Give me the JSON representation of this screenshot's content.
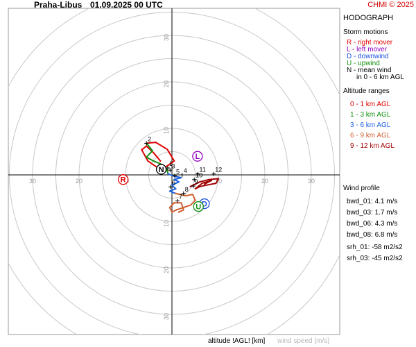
{
  "header": {
    "station": "Praha-Libus",
    "datetime": "01.09.2025 00 UTC",
    "credit": "CHMI © 2025"
  },
  "legend": {
    "title": "HODOGRAPH",
    "storm_heading": "Storm motions",
    "storm_items": [
      {
        "text": "R - right mover",
        "color": "#e00000"
      },
      {
        "text": "L - left mover",
        "color": "#9000c0"
      },
      {
        "text": "D - downwind",
        "color": "#1a50e0"
      },
      {
        "text": "U - upwind",
        "color": "#109010"
      },
      {
        "text": "N - mean wind",
        "color": "#000000"
      },
      {
        "text": "in 0 - 6 km AGL",
        "color": "#000000"
      }
    ],
    "alt_heading": "Altitude ranges",
    "alt_items": [
      {
        "text": "0 - 1 km AGL",
        "color": "#e00000"
      },
      {
        "text": "1 - 3 km AGL",
        "color": "#109010"
      },
      {
        "text": "3 - 6 km AGL",
        "color": "#1a60e0"
      },
      {
        "text": "6 - 9 km AGL",
        "color": "#d06030"
      },
      {
        "text": "9 - 12 km AGL",
        "color": "#a00000"
      }
    ],
    "wind_heading": "Wind profile",
    "wind_items": [
      {
        "text": "bwd_01: 4.1 m/s"
      },
      {
        "text": "bwd_03: 1.7 m/s"
      },
      {
        "text": "bwd_06: 4.3 m/s"
      },
      {
        "text": "bwd_08: 6.8 m/s"
      },
      {
        "text": "srh_01: -58 m2/s2"
      },
      {
        "text": "srh_03: -45 m2/s2"
      }
    ]
  },
  "footer": {
    "altitude_label": "altitude !AGL! [km]",
    "speed_label": "wind speed [m/s]"
  },
  "chart_data": {
    "type": "scatter",
    "title": "HODOGRAPH",
    "units": "m/s",
    "rings": [
      5,
      10,
      15,
      20,
      25,
      30,
      35,
      40
    ],
    "ring_labels": [
      "10",
      "20",
      "30"
    ],
    "axis_range": [
      -30,
      30
    ],
    "grid": true,
    "series": [
      {
        "name": "0 - 1 km AGL",
        "color": "#e00000",
        "points": [
          [
            -2.5,
            3.0
          ],
          [
            -4.0,
            4.8
          ],
          [
            -5.5,
            6.2
          ],
          [
            -6.5,
            5.4
          ],
          [
            -5.2,
            3.0
          ],
          [
            -3.0,
            1.5
          ],
          [
            -1.5,
            1.6
          ],
          [
            0.5,
            3.0
          ],
          [
            -1.0,
            5.5
          ],
          [
            -3.5,
            7.0
          ],
          [
            -5.5,
            6.8
          ]
        ]
      },
      {
        "name": "1 - 3 km AGL",
        "color": "#109010",
        "points": [
          [
            -5.5,
            6.8
          ],
          [
            -4.2,
            5.2
          ],
          [
            -5.5,
            3.8
          ],
          [
            -4.0,
            3.0
          ],
          [
            -2.5,
            2.4
          ],
          [
            -1.2,
            1.4
          ],
          [
            -0.8,
            0.2
          ]
        ]
      },
      {
        "name": "3 - 6 km AGL",
        "color": "#1a60e0",
        "points": [
          [
            -0.8,
            0.2
          ],
          [
            0.5,
            -0.3
          ],
          [
            2.0,
            -0.6
          ],
          [
            0.5,
            -1.0
          ],
          [
            1.5,
            -1.5
          ],
          [
            0.0,
            -2.2
          ],
          [
            0.8,
            -3.0
          ],
          [
            -0.5,
            -3.5
          ],
          [
            0.8,
            -4.0
          ]
        ]
      },
      {
        "name": "6 - 9 km AGL",
        "color": "#d06030",
        "points": [
          [
            0.8,
            -4.0
          ],
          [
            3.0,
            -4.5
          ],
          [
            4.5,
            -4.2
          ],
          [
            5.0,
            -5.5
          ],
          [
            4.0,
            -6.5
          ],
          [
            2.5,
            -7.0
          ],
          [
            1.0,
            -7.5
          ],
          [
            0.0,
            -8.0
          ],
          [
            -0.5,
            -7.0
          ],
          [
            0.5,
            -6.0
          ],
          [
            2.0,
            -6.0
          ],
          [
            2.5,
            -7.5
          ],
          [
            1.5,
            -8.0
          ]
        ]
      },
      {
        "name": "9 - 12 km AGL",
        "color": "#a00000",
        "points": [
          [
            4.0,
            -2.5
          ],
          [
            6.0,
            -1.5
          ],
          [
            8.0,
            -1.0
          ],
          [
            10.0,
            -0.8
          ],
          [
            9.5,
            -1.8
          ],
          [
            7.5,
            -2.2
          ],
          [
            6.0,
            -2.5
          ],
          [
            5.0,
            -3.0
          ],
          [
            6.5,
            -1.8
          ],
          [
            8.5,
            -1.2
          ],
          [
            7.0,
            -2.0
          ]
        ]
      }
    ],
    "height_labels": [
      {
        "label": "1",
        "x": -0.9,
        "y": 1.5
      },
      {
        "label": "2",
        "x": -5.5,
        "y": 6.8
      },
      {
        "label": "3",
        "x": -0.4,
        "y": 1.0
      },
      {
        "label": "4",
        "x": 2.2,
        "y": 0.0
      },
      {
        "label": "5",
        "x": 0.6,
        "y": -0.2
      },
      {
        "label": "6",
        "x": -0.3,
        "y": -2.6
      },
      {
        "label": "7",
        "x": 1.2,
        "y": -5.6
      },
      {
        "label": "8",
        "x": 2.5,
        "y": -4.0
      },
      {
        "label": "9",
        "x": 4.6,
        "y": -2.4
      },
      {
        "label": "10",
        "x": 4.8,
        "y": -1.0
      },
      {
        "label": "11",
        "x": 5.6,
        "y": 0.2
      },
      {
        "label": "12",
        "x": 9.0,
        "y": 0.2
      }
    ],
    "storm_motions": [
      {
        "label": "R",
        "x": -10.5,
        "y": -1.0,
        "color": "#e00000"
      },
      {
        "label": "L",
        "x": 5.5,
        "y": 4.0,
        "color": "#9000c0"
      },
      {
        "label": "D",
        "x": 7.0,
        "y": -6.2,
        "color": "#1a50e0"
      },
      {
        "label": "U",
        "x": 5.7,
        "y": -6.8,
        "color": "#109010"
      },
      {
        "label": "N",
        "x": -2.3,
        "y": 1.2,
        "color": "#000000"
      }
    ]
  }
}
